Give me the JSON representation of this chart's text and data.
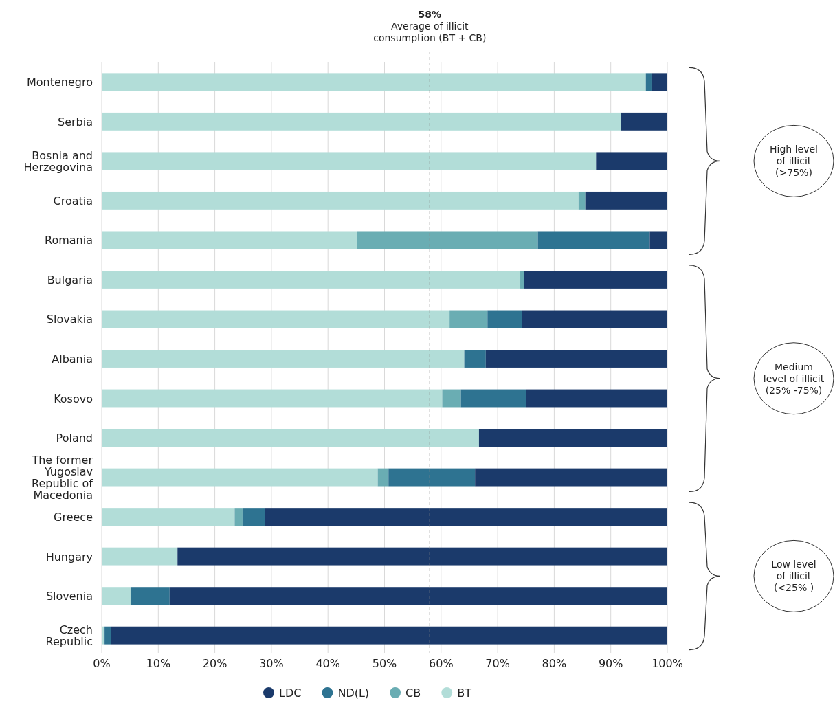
{
  "chart_data": {
    "type": "bar",
    "orientation": "horizontal",
    "stacked": true,
    "categories": [
      "Montenegro",
      "Serbia",
      "Bosnia and Herzegovina",
      "Croatia",
      "Romania",
      "Bulgaria",
      "Slovakia",
      "Albania",
      "Kosovo",
      "Poland",
      "The former Yugoslav Republic of Macedonia",
      "Greece",
      "Hungary",
      "Slovenia",
      "Czech Republic"
    ],
    "series": [
      {
        "name": "BT",
        "color": "#b2ddd8",
        "values": [
          96.2,
          91.8,
          87.4,
          84.3,
          45.2,
          74.0,
          61.5,
          64.1,
          60.2,
          66.7,
          48.8,
          23.5,
          13.4,
          5.1,
          0.5
        ]
      },
      {
        "name": "CB",
        "color": "#6aadb3",
        "values": [
          0,
          0,
          0,
          1.2,
          31.9,
          0.7,
          6.7,
          0,
          3.3,
          0,
          1.9,
          1.4,
          0,
          0,
          0
        ]
      },
      {
        "name": "ND(L)",
        "color": "#2e7391",
        "values": [
          1.0,
          0,
          0,
          0,
          19.8,
          0,
          6.1,
          3.8,
          11.5,
          0,
          15.3,
          4.0,
          0,
          6.9,
          1.2
        ]
      },
      {
        "name": "LDC",
        "color": "#1b3a6b",
        "values": [
          2.8,
          8.2,
          12.6,
          14.5,
          3.1,
          25.3,
          25.7,
          32.1,
          25.0,
          33.3,
          34.0,
          71.1,
          86.6,
          88.0,
          98.3
        ]
      }
    ],
    "xlim": [
      0,
      100
    ],
    "xticks": [
      {
        "value": 0,
        "label": "0%"
      },
      {
        "value": 10,
        "label": "10%"
      },
      {
        "value": 20,
        "label": "20%"
      },
      {
        "value": 30,
        "label": "30%"
      },
      {
        "value": 40,
        "label": "40%"
      },
      {
        "value": 50,
        "label": "50%"
      },
      {
        "value": 60,
        "label": "60%"
      },
      {
        "value": 70,
        "label": "70%"
      },
      {
        "value": 80,
        "label": "80%"
      },
      {
        "value": 90,
        "label": "90%"
      },
      {
        "value": 100,
        "label": "100%"
      }
    ],
    "grid": "x",
    "legend": "bottom",
    "ref_lines": [
      {
        "axis": "x",
        "value": 58,
        "label": "58%\nAverage of illicit\nconsumption (BT + CB)",
        "line_style": "dashed",
        "color": "#888888"
      }
    ],
    "annotations": [
      "High level\nof illicit\n(>75%)",
      "Medium\nlevel of illicit\n(25% -75%)",
      "Low level\nof illicit\n(<25% )"
    ]
  }
}
